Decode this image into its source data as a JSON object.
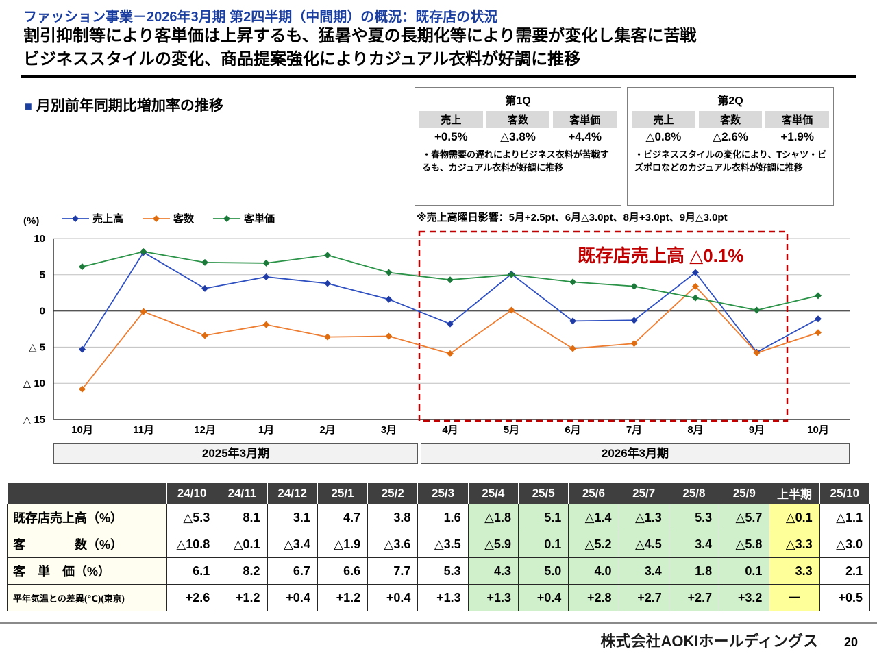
{
  "slide": {
    "title": "ファッション事業－2026年3月期 第2四半期（中間期）の概況：既存店の状況",
    "subtitle_line1": "割引抑制等により客単価は上昇するも、猛暑や夏の長期化等により需要が変化し集客に苦戦",
    "subtitle_line2": "ビジネススタイルの変化、商品提案強化によりカジュアル衣料が好調に推移",
    "section_heading": "月別前年同期比増加率の推移",
    "footer_company": "株式会社AOKIホールディングス",
    "page_number": "20"
  },
  "quarter_boxes": [
    {
      "title": "第1Q",
      "stats": [
        {
          "label": "売上",
          "value": "+0.5%"
        },
        {
          "label": "客数",
          "value": "△3.8%"
        },
        {
          "label": "客単価",
          "value": "+4.4%"
        }
      ],
      "note": "・春物需要の遅れによりビジネス衣料が苦戦するも、カジュアル衣料が好調に推移"
    },
    {
      "title": "第2Q",
      "stats": [
        {
          "label": "売上",
          "value": "△0.8%"
        },
        {
          "label": "客数",
          "value": "△2.6%"
        },
        {
          "label": "客単価",
          "value": "+1.9%"
        }
      ],
      "note": "・ビジネススタイルの変化により、Tシャツ・ビズポロなどのカジュアル衣料が好調に推移"
    }
  ],
  "weekday_note": "※売上高曜日影響：5月+2.5pt、6月△3.0pt、8月+3.0pt、9月△3.0pt",
  "chart_data": {
    "type": "line",
    "title": "月別前年同期比増加率の推移",
    "unit_label": "(%)",
    "x": [
      "10月",
      "11月",
      "12月",
      "1月",
      "2月",
      "3月",
      "4月",
      "5月",
      "6月",
      "7月",
      "8月",
      "9月",
      "10月"
    ],
    "series": [
      {
        "name": "売上高",
        "color": "#2e4fc0",
        "marker": "#1f3ba6",
        "values": [
          -5.3,
          8.1,
          3.1,
          4.7,
          3.8,
          1.6,
          -1.8,
          5.1,
          -1.4,
          -1.3,
          5.3,
          -5.7,
          -1.1
        ]
      },
      {
        "name": "客数",
        "color": "#ed7d31",
        "marker": "#e06c10",
        "values": [
          -10.8,
          -0.1,
          -3.4,
          -1.9,
          -3.6,
          -3.5,
          -5.9,
          0.1,
          -5.2,
          -4.5,
          3.4,
          -5.8,
          -3.0
        ]
      },
      {
        "name": "客単価",
        "color": "#2b9348",
        "marker": "#1b7a3a",
        "values": [
          6.1,
          8.2,
          6.7,
          6.6,
          7.7,
          5.3,
          4.3,
          5.0,
          4.0,
          3.4,
          1.8,
          0.1,
          2.1
        ]
      }
    ],
    "ylim": [
      -15,
      10
    ],
    "yticks": [
      10,
      5,
      0,
      -5,
      -10,
      -15
    ],
    "ytick_labels": [
      "10",
      "5",
      "0",
      "△ 5",
      "△ 10",
      "△ 15"
    ],
    "grid": true,
    "legend_position": "top-left",
    "highlight_annotation": "既存店売上高 △0.1%",
    "highlight_range_months": [
      "4月",
      "9月"
    ],
    "period_bands": [
      {
        "label": "2025年3月期"
      },
      {
        "label": "2026年3月期"
      }
    ]
  },
  "table": {
    "headers": [
      "",
      "24/10",
      "24/11",
      "24/12",
      "25/1",
      "25/2",
      "25/3",
      "25/4",
      "25/5",
      "25/6",
      "25/7",
      "25/8",
      "25/9",
      "上半期",
      "25/10"
    ],
    "rows": [
      {
        "label": "既存店売上高（%）",
        "cells": [
          "△5.3",
          "8.1",
          "3.1",
          "4.7",
          "3.8",
          "1.6",
          "△1.8",
          "5.1",
          "△1.4",
          "△1.3",
          "5.3",
          "△5.7",
          "△0.1",
          "△1.1"
        ]
      },
      {
        "label": "客　　　　数（%）",
        "cells": [
          "△10.8",
          "△0.1",
          "△3.4",
          "△1.9",
          "△3.6",
          "△3.5",
          "△5.9",
          "0.1",
          "△5.2",
          "△4.5",
          "3.4",
          "△5.8",
          "△3.3",
          "△3.0"
        ]
      },
      {
        "label": "客　単　価（%）",
        "cells": [
          "6.1",
          "8.2",
          "6.7",
          "6.6",
          "7.7",
          "5.3",
          "4.3",
          "5.0",
          "4.0",
          "3.4",
          "1.8",
          "0.1",
          "3.3",
          "2.1"
        ]
      },
      {
        "label": "平年気温との差異(℃)(東京)",
        "cells": [
          "+2.6",
          "+1.2",
          "+0.4",
          "+1.2",
          "+0.4",
          "+1.3",
          "+1.3",
          "+0.4",
          "+2.8",
          "+2.7",
          "+2.7",
          "+3.2",
          "ー",
          "+0.5"
        ]
      }
    ],
    "green_cols": [
      7,
      8,
      9,
      10,
      11,
      12
    ],
    "yellow_col": 13
  },
  "colors": {
    "title_blue": "#1b3fa0",
    "highlight_red": "#c00000",
    "green_cell": "#d0f0cc",
    "yellow_cell": "#ffff99",
    "header_gray": "#3f3f3f"
  }
}
